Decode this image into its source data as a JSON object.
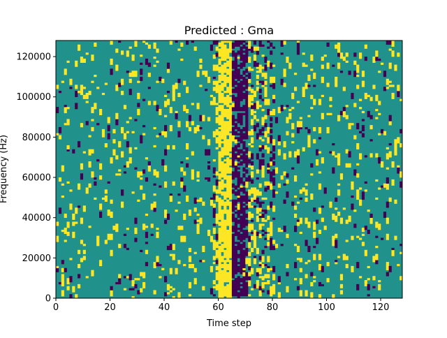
{
  "chart_data": {
    "type": "heatmap",
    "title": "Predicted : Gma",
    "xlabel": "Time step",
    "ylabel": "Frequency (Hz)",
    "xlim": [
      0,
      128
    ],
    "ylim": [
      0,
      128000
    ],
    "x_ticks": [
      "0",
      "20",
      "40",
      "60",
      "80",
      "100",
      "120"
    ],
    "y_ticks": [
      "0",
      "20000",
      "40000",
      "60000",
      "80000",
      "100000",
      "120000"
    ],
    "grid": false,
    "legend": "none",
    "colors": {
      "background": "#21918c",
      "high": "#fde725",
      "low": "#440154"
    },
    "bins": 128,
    "seed": 7
  }
}
